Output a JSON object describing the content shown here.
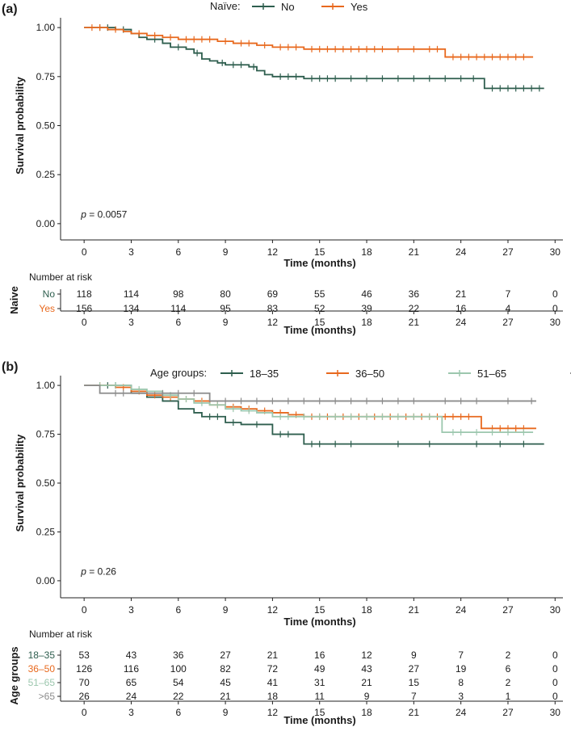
{
  "chart_data": [
    {
      "type": "line",
      "panel_label": "(a)",
      "title": "",
      "xlabel": "Time (months)",
      "ylabel": "Survival probability",
      "xlim": [
        -1.5,
        30.5
      ],
      "ylim": [
        -0.05,
        1.05
      ],
      "x_ticks": [
        "0",
        "3",
        "6",
        "9",
        "12",
        "15",
        "18",
        "21",
        "24",
        "27",
        "30"
      ],
      "y_ticks": [
        "0.00",
        "0.25",
        "0.50",
        "0.75",
        "1.00"
      ],
      "legend_title": "Naïve:",
      "legend_position": "top",
      "p_label": "p",
      "p_value": " = 0.0057",
      "series": [
        {
          "name": "No",
          "color": "#2e5e4e",
          "x": [
            0,
            2,
            3,
            3.5,
            4,
            5,
            5.5,
            6.5,
            7,
            7.5,
            8,
            8.5,
            9,
            10.5,
            11,
            11.5,
            12,
            14,
            25.5,
            29.3
          ],
          "y": [
            1.0,
            0.99,
            0.97,
            0.95,
            0.94,
            0.92,
            0.9,
            0.89,
            0.87,
            0.84,
            0.83,
            0.82,
            0.81,
            0.8,
            0.78,
            0.76,
            0.75,
            0.74,
            0.69,
            0.69
          ],
          "censor_x": [
            1,
            1.5,
            2.5,
            4.5,
            6,
            7.2,
            8.8,
            9.5,
            10,
            10.8,
            12.5,
            13,
            13.5,
            14.5,
            15,
            15.5,
            16,
            17,
            18,
            19,
            20,
            21,
            22,
            23,
            24,
            24.8,
            26,
            26.5,
            27,
            27.5,
            28,
            28.5,
            29
          ]
        },
        {
          "name": "Yes",
          "color": "#e8691e",
          "x": [
            0,
            1.5,
            2.5,
            3,
            4,
            5,
            6,
            8.5,
            9.5,
            11,
            12,
            14,
            23,
            28.6
          ],
          "y": [
            1.0,
            0.99,
            0.98,
            0.97,
            0.96,
            0.95,
            0.94,
            0.93,
            0.92,
            0.91,
            0.9,
            0.89,
            0.85,
            0.85
          ],
          "censor_x": [
            0.5,
            1,
            2,
            3.5,
            4.5,
            5.5,
            6.5,
            7,
            7.5,
            8,
            9,
            10,
            10.5,
            11.5,
            12.5,
            13,
            13.5,
            14.5,
            15,
            15.5,
            16,
            16.5,
            17,
            17.5,
            18,
            18.5,
            19,
            20,
            21,
            22,
            22.5,
            23.5,
            24,
            24.5,
            25,
            25.5,
            26,
            26.5,
            27,
            27.5,
            28
          ]
        }
      ],
      "risk_table": {
        "title": "Number at risk",
        "group_label": "Naive",
        "xlabel": "Time (months)",
        "times": [
          "0",
          "3",
          "6",
          "9",
          "12",
          "15",
          "18",
          "21",
          "24",
          "27",
          "30"
        ],
        "rows": [
          {
            "label": "No",
            "color": "#2e5e4e",
            "values": [
              "118",
              "114",
              "98",
              "80",
              "69",
              "55",
              "46",
              "36",
              "21",
              "7",
              "0"
            ]
          },
          {
            "label": "Yes",
            "color": "#e8691e",
            "values": [
              "156",
              "134",
              "114",
              "95",
              "83",
              "52",
              "39",
              "22",
              "16",
              "4",
              "0"
            ]
          }
        ]
      }
    },
    {
      "type": "line",
      "panel_label": "(b)",
      "title": "",
      "xlabel": "Time (months)",
      "ylabel": "Survival probability",
      "xlim": [
        -1.5,
        30.5
      ],
      "ylim": [
        -0.05,
        1.05
      ],
      "x_ticks": [
        "0",
        "3",
        "6",
        "9",
        "12",
        "15",
        "18",
        "21",
        "24",
        "27",
        "30"
      ],
      "y_ticks": [
        "0.00",
        "0.25",
        "0.50",
        "0.75",
        "1.00"
      ],
      "legend_title": "Age groups:",
      "legend_position": "top",
      "p_label": "p",
      "p_value": " = 0.26",
      "series": [
        {
          "name": "18–35",
          "color": "#2e5e4e",
          "x": [
            0,
            3,
            4,
            5,
            6,
            7,
            7.5,
            9,
            10,
            12,
            14,
            29.3
          ],
          "y": [
            1.0,
            0.96,
            0.94,
            0.92,
            0.88,
            0.86,
            0.84,
            0.81,
            0.8,
            0.75,
            0.7,
            0.7
          ],
          "censor_x": [
            1.5,
            2,
            8,
            8.5,
            9.5,
            11,
            12.5,
            13,
            14.5,
            15,
            16,
            17,
            20,
            22,
            25,
            26.5,
            28
          ]
        },
        {
          "name": "36–50",
          "color": "#e8691e",
          "x": [
            0,
            2,
            3,
            4,
            5,
            6,
            7,
            8,
            9,
            10,
            11,
            12,
            13,
            14,
            25.3,
            28.8
          ],
          "y": [
            1.0,
            0.99,
            0.97,
            0.95,
            0.94,
            0.93,
            0.92,
            0.9,
            0.89,
            0.88,
            0.87,
            0.86,
            0.85,
            0.84,
            0.78,
            0.78
          ],
          "censor_x": [
            1,
            2.5,
            3.5,
            4.5,
            5.5,
            6.5,
            7.5,
            8.5,
            9.5,
            10.5,
            11.5,
            12.5,
            13.5,
            14.5,
            15,
            15.5,
            16,
            16.5,
            17,
            17.5,
            18,
            18.5,
            19,
            19.5,
            20,
            20.5,
            21,
            21.5,
            22,
            22.5,
            23,
            23.5,
            24,
            24.5,
            26,
            26.5,
            27,
            27.5,
            28
          ]
        },
        {
          "name": "51–65",
          "color": "#9cc7ae",
          "x": [
            0,
            3,
            4,
            5,
            6,
            7,
            8,
            9,
            10,
            11,
            12,
            22.8,
            28.6
          ],
          "y": [
            1.0,
            0.98,
            0.97,
            0.95,
            0.93,
            0.91,
            0.9,
            0.88,
            0.87,
            0.86,
            0.84,
            0.76,
            0.76
          ],
          "censor_x": [
            1,
            2,
            3.5,
            5.5,
            6.5,
            7.5,
            8.5,
            9.5,
            10.5,
            12.5,
            13,
            14,
            15,
            16,
            17,
            18,
            19,
            20,
            21,
            22,
            23.5,
            24,
            25,
            26,
            27,
            28
          ]
        },
        {
          "name": ">65",
          "color": "#8c8c8c",
          "x": [
            0,
            1,
            3.5,
            8,
            28.8
          ],
          "y": [
            1.0,
            0.96,
            0.96,
            0.92,
            0.92
          ],
          "censor_x": [
            2,
            2.5,
            5,
            6,
            7,
            9,
            10,
            11,
            12,
            13,
            14,
            15,
            16,
            17,
            18,
            19,
            20,
            21,
            23,
            24,
            25,
            27,
            28.5
          ]
        }
      ],
      "risk_table": {
        "title": "Number at risk",
        "group_label": "Age groups",
        "xlabel": "Time (months)",
        "times": [
          "0",
          "3",
          "6",
          "9",
          "12",
          "15",
          "18",
          "21",
          "24",
          "27",
          "30"
        ],
        "rows": [
          {
            "label": "18–35",
            "color": "#2e5e4e",
            "values": [
              "53",
              "43",
              "36",
              "27",
              "21",
              "16",
              "12",
              "9",
              "7",
              "2",
              "0"
            ]
          },
          {
            "label": "36–50",
            "color": "#e8691e",
            "values": [
              "126",
              "116",
              "100",
              "82",
              "72",
              "49",
              "43",
              "27",
              "19",
              "6",
              "0"
            ]
          },
          {
            "label": "51–65",
            "color": "#9cc7ae",
            "values": [
              "70",
              "65",
              "54",
              "45",
              "41",
              "31",
              "21",
              "15",
              "8",
              "2",
              "0"
            ]
          },
          {
            "label": ">65",
            "color": "#8c8c8c",
            "values": [
              "26",
              "24",
              "22",
              "21",
              "18",
              "11",
              "9",
              "7",
              "3",
              "1",
              "0"
            ]
          }
        ]
      }
    }
  ]
}
